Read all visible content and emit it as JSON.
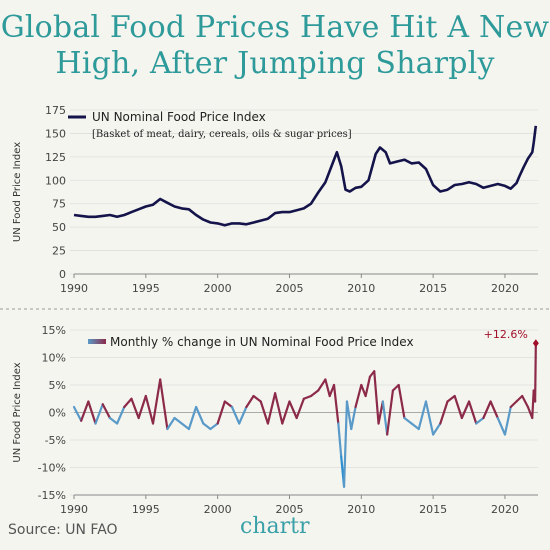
{
  "title": "Global Food Prices Have Hit A New High, After Jumping Sharply",
  "source": "Source: UN FAO",
  "brand": "chartr",
  "colors": {
    "line": "#14144a",
    "change_up": "#8c2a4a",
    "change_down": "#5a9ac8",
    "title": "#2e9a9a",
    "brand": "#3aa0a8",
    "highlight": "#a0102a"
  },
  "chart_data": [
    {
      "type": "line",
      "legend": "UN Nominal Food Price Index",
      "note": "[Basket of meat, dairy, cereals, oils & sugar prices]",
      "ylabel": "UN Food Price Index",
      "ylim": [
        0,
        175
      ],
      "yticks": [
        "0",
        "25",
        "50",
        "75",
        "100",
        "125",
        "150",
        "175"
      ],
      "xlim": [
        1990,
        2022.3
      ],
      "xticks": [
        "1990",
        "1995",
        "2000",
        "2005",
        "2010",
        "2015",
        "2020"
      ],
      "x": [
        1990,
        1990.5,
        1991,
        1991.5,
        1992,
        1992.5,
        1993,
        1993.5,
        1994,
        1994.5,
        1995,
        1995.5,
        1996,
        1996.5,
        1997,
        1997.5,
        1998,
        1998.5,
        1999,
        1999.5,
        2000,
        2000.5,
        2001,
        2001.5,
        2002,
        2002.5,
        2003,
        2003.5,
        2004,
        2004.5,
        2005,
        2005.5,
        2006,
        2006.5,
        2007,
        2007.5,
        2008,
        2008.3,
        2008.6,
        2008.9,
        2009.2,
        2009.6,
        2010,
        2010.5,
        2011,
        2011.3,
        2011.7,
        2012,
        2012.5,
        2013,
        2013.5,
        2014,
        2014.5,
        2015,
        2015.5,
        2016,
        2016.5,
        2017,
        2017.5,
        2018,
        2018.5,
        2019,
        2019.5,
        2020,
        2020.4,
        2020.8,
        2021,
        2021.3,
        2021.6,
        2021.9,
        2022,
        2022.15
      ],
      "y": [
        63,
        62,
        61,
        61,
        62,
        63,
        61,
        63,
        66,
        69,
        72,
        74,
        80,
        76,
        72,
        70,
        69,
        63,
        58,
        55,
        54,
        52,
        54,
        54,
        53,
        55,
        57,
        59,
        65,
        66,
        66,
        68,
        70,
        75,
        87,
        98,
        118,
        130,
        115,
        90,
        88,
        92,
        93,
        100,
        128,
        135,
        130,
        118,
        120,
        122,
        118,
        119,
        112,
        95,
        88,
        90,
        95,
        96,
        98,
        96,
        92,
        94,
        96,
        94,
        91,
        97,
        104,
        114,
        123,
        130,
        140,
        158
      ]
    },
    {
      "type": "line",
      "legend": "Monthly % change in UN Nominal Food Price Index",
      "ylabel": "UN Food Price Index",
      "ylim": [
        -15,
        15
      ],
      "yticks": [
        "-15%",
        "-10%",
        "-5%",
        "0%",
        "5%",
        "10%",
        "15%"
      ],
      "xlim": [
        1990,
        2022.3
      ],
      "xticks": [
        "1990",
        "1995",
        "2000",
        "2005",
        "2010",
        "2015",
        "2020"
      ],
      "annotation": "+12.6%",
      "x": [
        1990,
        1990.5,
        1991,
        1991.5,
        1992,
        1992.5,
        1993,
        1993.5,
        1994,
        1994.5,
        1995,
        1995.5,
        1996,
        1996.5,
        1997,
        1997.5,
        1998,
        1998.5,
        1999,
        1999.5,
        2000,
        2000.5,
        2001,
        2001.5,
        2002,
        2002.5,
        2003,
        2003.5,
        2004,
        2004.5,
        2005,
        2005.5,
        2006,
        2006.5,
        2007,
        2007.5,
        2007.8,
        2008.1,
        2008.4,
        2008.6,
        2008.8,
        2009,
        2009.3,
        2009.6,
        2010,
        2010.3,
        2010.6,
        2010.9,
        2011.2,
        2011.5,
        2011.8,
        2012.2,
        2012.6,
        2013,
        2013.5,
        2014,
        2014.5,
        2015,
        2015.5,
        2016,
        2016.5,
        2017,
        2017.5,
        2018,
        2018.5,
        2019,
        2019.5,
        2020,
        2020.4,
        2020.8,
        2021.2,
        2021.6,
        2021.9,
        2022,
        2022.1,
        2022.15
      ],
      "y": [
        1,
        -1.5,
        2,
        -2,
        1.5,
        -1,
        -2,
        1,
        2.5,
        -1,
        3,
        -2,
        6,
        -3,
        -1,
        -2,
        -3,
        1,
        -2,
        -3,
        -2,
        2,
        1,
        -2,
        1,
        3,
        2,
        -2,
        3.5,
        -2,
        2,
        -1,
        2.5,
        3,
        4,
        6,
        3,
        5,
        -2,
        -8,
        -13.5,
        2,
        -3,
        1,
        5,
        3,
        6.5,
        7.5,
        -2,
        2,
        -4,
        4,
        5,
        -1,
        -2,
        -3,
        2,
        -4,
        -2,
        2,
        3,
        -1,
        2,
        -2,
        -1,
        2,
        -1,
        -4,
        1,
        2,
        3,
        1,
        -1,
        4,
        2,
        12.6
      ]
    }
  ]
}
